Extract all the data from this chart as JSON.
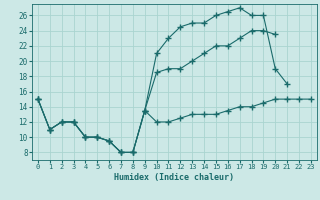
{
  "xlabel": "Humidex (Indice chaleur)",
  "bg_color": "#cce8e6",
  "grid_color": "#aad4d0",
  "line_color": "#1a6b6b",
  "xlim": [
    -0.5,
    23.5
  ],
  "ylim": [
    7,
    27.5
  ],
  "xticks": [
    0,
    1,
    2,
    3,
    4,
    5,
    6,
    7,
    8,
    9,
    10,
    11,
    12,
    13,
    14,
    15,
    16,
    17,
    18,
    19,
    20,
    21,
    22,
    23
  ],
  "yticks": [
    8,
    10,
    12,
    14,
    16,
    18,
    20,
    22,
    24,
    26
  ],
  "line1_x": [
    0,
    1,
    2,
    3,
    4,
    5,
    6,
    7,
    8,
    9,
    10,
    11,
    12,
    13,
    14,
    15,
    16,
    17,
    18,
    19,
    20,
    21
  ],
  "line1_y": [
    15,
    11,
    12,
    12,
    10,
    10,
    9.5,
    8,
    8,
    13.5,
    21,
    23,
    24.5,
    25,
    25,
    26,
    26.5,
    27,
    26,
    26,
    19,
    17
  ],
  "line2_x": [
    0,
    1,
    2,
    3,
    4,
    5,
    6,
    7,
    8,
    9,
    10,
    11,
    12,
    13,
    14,
    15,
    16,
    17,
    18,
    19,
    20
  ],
  "line2_y": [
    15,
    11,
    12,
    12,
    10,
    10,
    9.5,
    8,
    8,
    13.5,
    18.5,
    19,
    19,
    20,
    21,
    22,
    22,
    23,
    24,
    24,
    23.5
  ],
  "line3_x": [
    0,
    1,
    2,
    3,
    4,
    5,
    6,
    7,
    8,
    9,
    10,
    11,
    12,
    13,
    14,
    15,
    16,
    17,
    18,
    19,
    20,
    21,
    22,
    23
  ],
  "line3_y": [
    15,
    11,
    12,
    12,
    10,
    10,
    9.5,
    8,
    8,
    13.5,
    12,
    12,
    12.5,
    13,
    13,
    13,
    13.5,
    14,
    14,
    14.5,
    15,
    15,
    15,
    15
  ]
}
